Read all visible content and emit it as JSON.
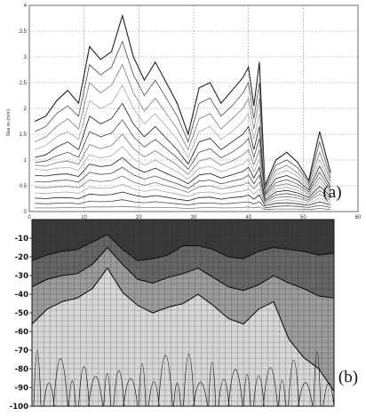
{
  "chart_data": [
    {
      "panel": "a",
      "type": "line",
      "panel_label": "(a)",
      "ylabel": "Slsa vo (m/s²)",
      "xlim": [
        0,
        60
      ],
      "ylim": [
        0,
        4
      ],
      "xticks": [
        "0",
        "10",
        "20",
        "30",
        "40",
        "50",
        "60"
      ],
      "yticks": [
        "0",
        "0.5",
        "1",
        "1.5",
        "2",
        "2.5",
        "3",
        "3.5",
        "4"
      ],
      "grid": true,
      "x": [
        1,
        3,
        5,
        7,
        9,
        11,
        13,
        15,
        17,
        19,
        21,
        23,
        25,
        27,
        29,
        31,
        33,
        35,
        37,
        39,
        40,
        41,
        42,
        43,
        45,
        47,
        49,
        51,
        53,
        55
      ],
      "series": [
        {
          "values": [
            1.75,
            1.85,
            2.15,
            2.35,
            2.1,
            3.2,
            2.95,
            3.1,
            3.8,
            3.0,
            2.55,
            2.9,
            2.5,
            2.1,
            1.5,
            2.4,
            2.5,
            2.1,
            2.35,
            2.6,
            2.8,
            2.05,
            2.9,
            0.5,
            1.0,
            1.15,
            0.95,
            0.6,
            1.55,
            0.75
          ]
        },
        {
          "values": [
            1.55,
            1.65,
            1.9,
            2.05,
            1.85,
            2.85,
            2.65,
            2.8,
            3.3,
            2.65,
            2.25,
            2.55,
            2.2,
            1.85,
            1.35,
            2.1,
            2.2,
            1.85,
            2.05,
            2.3,
            2.5,
            1.8,
            2.5,
            0.45,
            0.9,
            1.0,
            0.85,
            0.55,
            1.35,
            0.65
          ]
        },
        {
          "values": [
            1.35,
            1.45,
            1.65,
            1.8,
            1.6,
            2.5,
            2.3,
            2.45,
            2.85,
            2.3,
            1.95,
            2.2,
            1.9,
            1.6,
            1.2,
            1.8,
            1.9,
            1.6,
            1.8,
            2.0,
            2.2,
            1.6,
            2.2,
            0.42,
            0.8,
            0.9,
            0.75,
            0.5,
            1.15,
            0.58
          ]
        },
        {
          "values": [
            1.2,
            1.28,
            1.45,
            1.55,
            1.4,
            2.15,
            2.0,
            2.1,
            2.45,
            2.0,
            1.7,
            1.9,
            1.65,
            1.4,
            1.05,
            1.55,
            1.65,
            1.4,
            1.55,
            1.75,
            1.9,
            1.4,
            1.9,
            0.38,
            0.72,
            0.8,
            0.68,
            0.46,
            1.0,
            0.52
          ]
        },
        {
          "values": [
            1.05,
            1.1,
            1.25,
            1.35,
            1.2,
            1.85,
            1.7,
            1.8,
            2.1,
            1.7,
            1.45,
            1.65,
            1.42,
            1.2,
            0.92,
            1.35,
            1.42,
            1.2,
            1.35,
            1.5,
            1.65,
            1.2,
            1.65,
            0.35,
            0.64,
            0.7,
            0.6,
            0.42,
            0.88,
            0.47
          ]
        },
        {
          "values": [
            0.95,
            0.98,
            1.08,
            1.15,
            1.05,
            1.55,
            1.45,
            1.52,
            1.78,
            1.45,
            1.25,
            1.4,
            1.22,
            1.04,
            0.82,
            1.15,
            1.22,
            1.04,
            1.15,
            1.3,
            1.42,
            1.05,
            1.42,
            0.32,
            0.56,
            0.62,
            0.53,
            0.38,
            0.76,
            0.42
          ]
        },
        {
          "values": [
            0.9,
            0.88,
            0.95,
            0.98,
            0.92,
            1.3,
            1.22,
            1.28,
            1.5,
            1.22,
            1.06,
            1.18,
            1.04,
            0.9,
            0.72,
            0.98,
            1.04,
            0.9,
            0.98,
            1.1,
            1.2,
            0.9,
            1.2,
            0.29,
            0.5,
            0.54,
            0.47,
            0.34,
            0.66,
            0.38
          ]
        },
        {
          "values": [
            0.82,
            0.8,
            0.84,
            0.86,
            0.8,
            1.1,
            1.04,
            1.08,
            1.26,
            1.03,
            0.9,
            1.0,
            0.88,
            0.77,
            0.63,
            0.84,
            0.88,
            0.77,
            0.84,
            0.93,
            1.02,
            0.77,
            1.02,
            0.26,
            0.44,
            0.47,
            0.41,
            0.3,
            0.57,
            0.34
          ]
        },
        {
          "values": [
            0.7,
            0.69,
            0.72,
            0.73,
            0.68,
            0.92,
            0.87,
            0.9,
            1.05,
            0.86,
            0.76,
            0.84,
            0.74,
            0.65,
            0.54,
            0.71,
            0.74,
            0.65,
            0.71,
            0.78,
            0.86,
            0.65,
            0.86,
            0.23,
            0.38,
            0.41,
            0.36,
            0.27,
            0.49,
            0.3
          ]
        },
        {
          "values": [
            0.58,
            0.57,
            0.6,
            0.61,
            0.57,
            0.76,
            0.72,
            0.74,
            0.86,
            0.71,
            0.63,
            0.69,
            0.61,
            0.54,
            0.45,
            0.59,
            0.61,
            0.54,
            0.59,
            0.64,
            0.71,
            0.54,
            0.71,
            0.2,
            0.32,
            0.35,
            0.31,
            0.23,
            0.41,
            0.26
          ]
        },
        {
          "values": [
            0.47,
            0.46,
            0.48,
            0.49,
            0.46,
            0.61,
            0.58,
            0.6,
            0.69,
            0.57,
            0.51,
            0.56,
            0.5,
            0.44,
            0.37,
            0.48,
            0.5,
            0.44,
            0.48,
            0.52,
            0.57,
            0.44,
            0.57,
            0.17,
            0.27,
            0.29,
            0.26,
            0.2,
            0.34,
            0.22
          ]
        },
        {
          "values": [
            0.36,
            0.35,
            0.37,
            0.38,
            0.35,
            0.47,
            0.45,
            0.46,
            0.53,
            0.44,
            0.39,
            0.43,
            0.38,
            0.34,
            0.29,
            0.37,
            0.38,
            0.34,
            0.37,
            0.4,
            0.44,
            0.34,
            0.44,
            0.14,
            0.21,
            0.23,
            0.2,
            0.16,
            0.26,
            0.17
          ]
        },
        {
          "values": [
            0.26,
            0.25,
            0.27,
            0.27,
            0.25,
            0.34,
            0.32,
            0.33,
            0.38,
            0.32,
            0.28,
            0.31,
            0.28,
            0.24,
            0.21,
            0.27,
            0.28,
            0.24,
            0.27,
            0.29,
            0.32,
            0.24,
            0.32,
            0.11,
            0.16,
            0.17,
            0.15,
            0.12,
            0.19,
            0.13
          ]
        },
        {
          "values": [
            0.16,
            0.15,
            0.16,
            0.17,
            0.15,
            0.2,
            0.19,
            0.2,
            0.23,
            0.19,
            0.17,
            0.19,
            0.17,
            0.15,
            0.13,
            0.16,
            0.17,
            0.15,
            0.16,
            0.18,
            0.19,
            0.15,
            0.19,
            0.07,
            0.1,
            0.11,
            0.1,
            0.08,
            0.12,
            0.08
          ]
        },
        {
          "values": [
            0.07,
            0.07,
            0.07,
            0.08,
            0.07,
            0.09,
            0.09,
            0.09,
            0.1,
            0.09,
            0.08,
            0.08,
            0.08,
            0.07,
            0.06,
            0.07,
            0.08,
            0.07,
            0.07,
            0.08,
            0.09,
            0.07,
            0.09,
            0.04,
            0.05,
            0.05,
            0.05,
            0.04,
            0.06,
            0.04
          ]
        }
      ]
    },
    {
      "panel": "b",
      "type": "heatmap",
      "panel_label": "(b)",
      "ylim": [
        -100,
        0
      ],
      "yticks": [
        "-10",
        "-20",
        "-30",
        "-40",
        "-50",
        "-60",
        "-70",
        "-80",
        "-90",
        "-100"
      ],
      "grid": true,
      "colors": [
        "#3a3a3a",
        "#666666",
        "#9c9c9c",
        "#d8d8d8"
      ],
      "x": [
        0,
        0.05,
        0.1,
        0.15,
        0.2,
        0.25,
        0.3,
        0.35,
        0.4,
        0.45,
        0.5,
        0.55,
        0.6,
        0.65,
        0.7,
        0.75,
        0.8,
        0.85,
        0.9,
        0.95,
        1.0
      ],
      "boundaries": [
        [
          -22,
          -19,
          -17,
          -16,
          -12,
          -8,
          -16,
          -22,
          -21,
          -19,
          -14,
          -14,
          -16,
          -20,
          -21,
          -17,
          -15,
          -16,
          -17,
          -19,
          -18
        ],
        [
          -36,
          -32,
          -30,
          -29,
          -24,
          -15,
          -24,
          -32,
          -34,
          -31,
          -29,
          -26,
          -31,
          -36,
          -38,
          -35,
          -30,
          -34,
          -37,
          -41,
          -42
        ],
        [
          -56,
          -48,
          -44,
          -42,
          -37,
          -26,
          -39,
          -46,
          -50,
          -47,
          -45,
          -40,
          -46,
          -53,
          -56,
          -48,
          -44,
          -64,
          -74,
          -80,
          -92
        ]
      ]
    }
  ]
}
